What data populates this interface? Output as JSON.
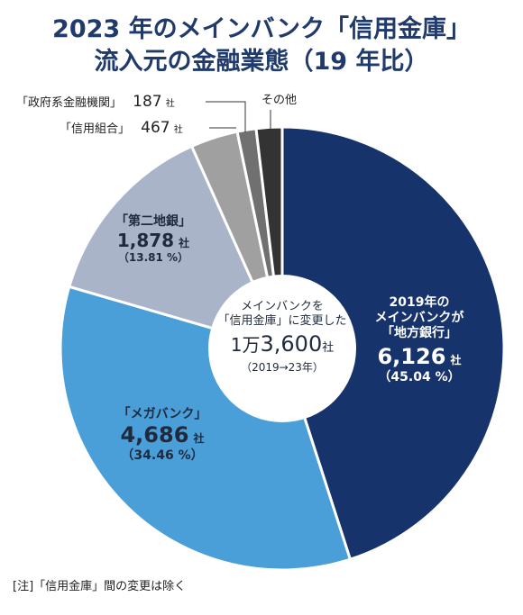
{
  "title_line1": "2023 年のメインバンク「信用金庫」",
  "title_line2": "流入元の金融業態（19 年比）",
  "center": {
    "line1": "メインバンクを",
    "line2": "「信用金庫」に変更した",
    "total_prefix": "1万",
    "total_value": "3,600",
    "total_unit": "社",
    "period": "（2019→23年）"
  },
  "labels": {
    "chiho": {
      "pre1": "2019年の",
      "pre2": "メインバンクが",
      "name": "「地方銀行」",
      "value": "6,126",
      "unit": "社",
      "pct": "（45.04 %）"
    },
    "mega": {
      "name": "「メガバンク」",
      "value": "4,686",
      "unit": "社",
      "pct": "（34.46 %）"
    },
    "daini": {
      "name": "「第二地銀」",
      "value": "1,878",
      "unit": "社",
      "pct": "（13.81 %）"
    },
    "seifu": {
      "name": "「政府系金融機関」",
      "value": "187",
      "unit": "社"
    },
    "shinkumi": {
      "name": "「信用組合」",
      "value": "467",
      "unit": "社"
    },
    "other": {
      "name": "その他"
    }
  },
  "note": "[注]「信用金庫」間の変更は除く",
  "chart_data": {
    "type": "pie",
    "title": "2023 年のメインバンク「信用金庫」流入元の金融業態（19 年比）",
    "total": 13600,
    "slices": [
      {
        "name": "地方銀行",
        "value": 6126,
        "percent": 45.04,
        "color": "#17336b"
      },
      {
        "name": "メガバンク",
        "value": 4686,
        "percent": 34.46,
        "color": "#4a9fd8"
      },
      {
        "name": "第二地銀",
        "value": 1878,
        "percent": 13.81,
        "color": "#a9b4c8"
      },
      {
        "name": "信用組合",
        "value": 467,
        "color": "#a0a0a0"
      },
      {
        "name": "政府系金融機関",
        "value": 187,
        "color": "#707070"
      },
      {
        "name": "その他",
        "value": 256,
        "color": "#333333"
      }
    ],
    "direction": "clockwise from top"
  }
}
